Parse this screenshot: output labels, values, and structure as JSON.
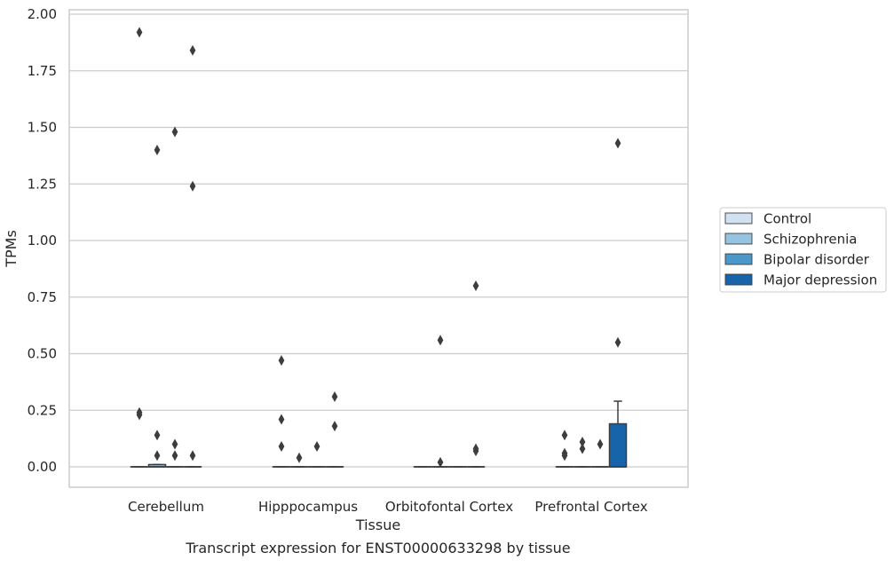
{
  "chart_data": {
    "type": "box",
    "caption": "Transcript expression for ENST00000633298 by tissue",
    "xlabel": "Tissue",
    "ylabel": "TPMs",
    "ylim": [
      -0.09,
      2.02
    ],
    "yticks": [
      "0.00",
      "0.25",
      "0.50",
      "0.75",
      "1.00",
      "1.25",
      "1.50",
      "1.75",
      "2.00"
    ],
    "ytick_values": [
      0,
      0.25,
      0.5,
      0.75,
      1.0,
      1.25,
      1.5,
      1.75,
      2.0
    ],
    "grid": true,
    "legend_position": "right",
    "categories": [
      "Cerebellum",
      "Hipppocampus",
      "Orbitofontal Cortex",
      "Prefrontal Cortex"
    ],
    "series": [
      {
        "name": "Control",
        "color": "#d0e1f2",
        "boxes": [
          {
            "q1": 0,
            "median": 0,
            "q3": 0,
            "whisker_low": 0,
            "whisker_high": 0,
            "outliers": [
              1.92,
              0.24,
              0.23
            ]
          },
          {
            "q1": 0,
            "median": 0,
            "q3": 0,
            "whisker_low": 0,
            "whisker_high": 0,
            "outliers": [
              0.47,
              0.21,
              0.09
            ]
          },
          {
            "q1": 0,
            "median": 0,
            "q3": 0,
            "whisker_low": 0,
            "whisker_high": 0,
            "outliers": []
          },
          {
            "q1": 0,
            "median": 0,
            "q3": 0,
            "whisker_low": 0,
            "whisker_high": 0,
            "outliers": [
              0.14,
              0.06,
              0.05
            ]
          }
        ]
      },
      {
        "name": "Schizophrenia",
        "color": "#94c4df",
        "boxes": [
          {
            "q1": 0,
            "median": 0,
            "q3": 0.01,
            "whisker_low": 0,
            "whisker_high": 0.01,
            "outliers": [
              1.4,
              0.14,
              0.05
            ]
          },
          {
            "q1": 0,
            "median": 0,
            "q3": 0,
            "whisker_low": 0,
            "whisker_high": 0,
            "outliers": [
              0.04
            ]
          },
          {
            "q1": 0,
            "median": 0,
            "q3": 0,
            "whisker_low": 0,
            "whisker_high": 0,
            "outliers": [
              0.56,
              0.02
            ]
          },
          {
            "q1": 0,
            "median": 0,
            "q3": 0,
            "whisker_low": 0,
            "whisker_high": 0,
            "outliers": [
              0.11,
              0.08
            ]
          }
        ]
      },
      {
        "name": "Bipolar disorder",
        "color": "#4a98c9",
        "boxes": [
          {
            "q1": 0,
            "median": 0,
            "q3": 0,
            "whisker_low": 0,
            "whisker_high": 0,
            "outliers": [
              1.48,
              0.1,
              0.05
            ]
          },
          {
            "q1": 0,
            "median": 0,
            "q3": 0,
            "whisker_low": 0,
            "whisker_high": 0,
            "outliers": [
              0.09
            ]
          },
          {
            "q1": 0,
            "median": 0,
            "q3": 0,
            "whisker_low": 0,
            "whisker_high": 0,
            "outliers": []
          },
          {
            "q1": 0,
            "median": 0,
            "q3": 0,
            "whisker_low": 0,
            "whisker_high": 0,
            "outliers": [
              0.1
            ]
          }
        ]
      },
      {
        "name": "Major depression",
        "color": "#1764ab",
        "boxes": [
          {
            "q1": 0,
            "median": 0,
            "q3": 0,
            "whisker_low": 0,
            "whisker_high": 0,
            "outliers": [
              1.84,
              1.24,
              0.05
            ]
          },
          {
            "q1": 0,
            "median": 0,
            "q3": 0,
            "whisker_low": 0,
            "whisker_high": 0,
            "outliers": [
              0.31,
              0.18
            ]
          },
          {
            "q1": 0,
            "median": 0,
            "q3": 0,
            "whisker_low": 0,
            "whisker_high": 0,
            "outliers": [
              0.8,
              0.08,
              0.07
            ]
          },
          {
            "q1": 0,
            "median": 0,
            "q3": 0.19,
            "whisker_low": 0,
            "whisker_high": 0.29,
            "outliers": [
              1.43,
              0.55
            ]
          }
        ]
      }
    ]
  }
}
